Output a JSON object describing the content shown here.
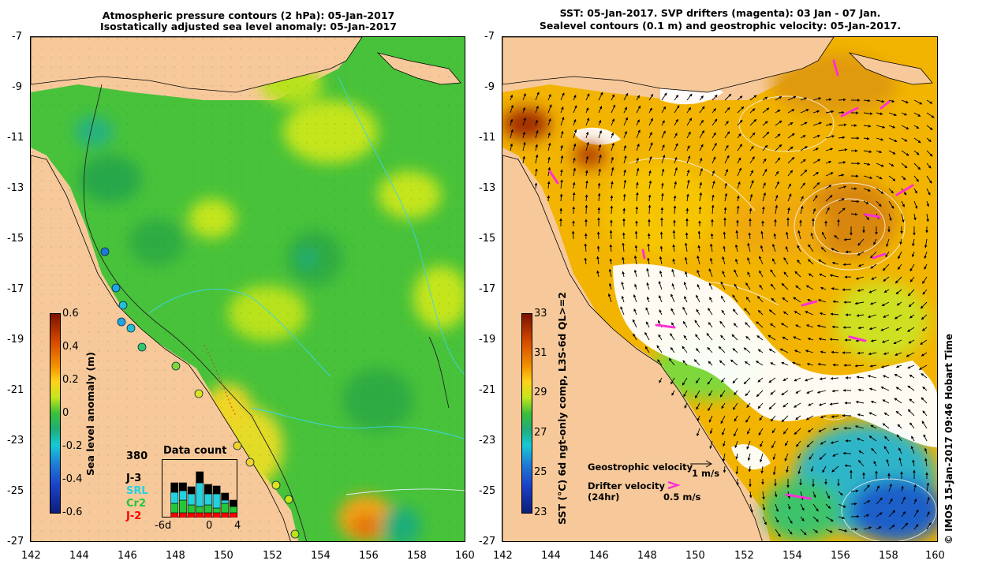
{
  "left_map": {
    "title_line1": "Atmospheric pressure contours (2 hPa): 05-Jan-2017",
    "title_line2": "Isostatically adjusted sea level anomaly: 05-Jan-2017",
    "lat_ticks": [
      "-7",
      "-9",
      "-11",
      "-13",
      "-15",
      "-17",
      "-19",
      "-21",
      "-23",
      "-25",
      "-27"
    ],
    "lon_ticks": [
      "142",
      "144",
      "146",
      "148",
      "150",
      "152",
      "154",
      "156",
      "158",
      "160"
    ],
    "colorbar": {
      "label": "Sea level anomaly (m)",
      "ticks": [
        "0.6",
        "0.4",
        "0.2",
        "0",
        "-0.2",
        "-0.4",
        "-0.6"
      ],
      "colors": [
        "#8b1a00",
        "#e05a00",
        "#ffd21a",
        "#2eb84a",
        "#16c9d6",
        "#1b43c9",
        "#0c1e7a"
      ]
    },
    "data_count": {
      "title": "Data count",
      "max_label": "380",
      "x_ticks": [
        "-6d",
        "0",
        "4"
      ],
      "series": [
        {
          "name": "J-3",
          "color": "#000000",
          "values": [
            0,
            12,
            10,
            9,
            14,
            12,
            10,
            9,
            8
          ]
        },
        {
          "name": "SRL",
          "color": "#22d2e0",
          "values": [
            0,
            14,
            12,
            14,
            30,
            14,
            18,
            4,
            0
          ]
        },
        {
          "name": "Cr2",
          "color": "#22c83a",
          "values": [
            0,
            12,
            16,
            10,
            8,
            10,
            6,
            12,
            8
          ]
        },
        {
          "name": "J-2",
          "color": "#ff0000",
          "values": [
            0,
            6,
            6,
            6,
            6,
            6,
            6,
            6,
            6
          ]
        }
      ]
    }
  },
  "right_map": {
    "title_line1": "SST: 05-Jan-2017. SVP drifters (magenta): 03 Jan - 07 Jan.",
    "title_line2": "Sealevel contours (0.1 m) and geostrophic velocity: 05-Jan-2017.",
    "lat_ticks": [
      "-7",
      "-9",
      "-11",
      "-13",
      "-15",
      "-17",
      "-19",
      "-21",
      "-23",
      "-25",
      "-27"
    ],
    "lon_ticks": [
      "142",
      "144",
      "146",
      "148",
      "150",
      "152",
      "154",
      "156",
      "158",
      "160"
    ],
    "colorbar": {
      "label": "SST (°C) 6d ngt-only comp, L3S-6d QL>=2",
      "ticks": [
        "33",
        "31",
        "29",
        "27",
        "25",
        "23"
      ],
      "colors": [
        "#8b1a00",
        "#e05a00",
        "#ffd21a",
        "#2eb84a",
        "#16c9d6",
        "#1b43c9",
        "#0c1e7a"
      ]
    },
    "legend": {
      "geo_label": "Geostrophic velocity",
      "geo_scale": "1 m/s",
      "drifter_label1": "Drifter velocity",
      "drifter_label2": "(24hr)",
      "drifter_scale": "0.5 m/s",
      "drifter_color": "#ff2fd6"
    },
    "credit": "© IMOS 15-Jan-2017 09:46 Hobart Time"
  },
  "colors": {
    "land": "#f7c99a",
    "sea_green": "#4bc43a",
    "sst_orange": "#f2b400",
    "drifter": "#ff2fd6"
  }
}
